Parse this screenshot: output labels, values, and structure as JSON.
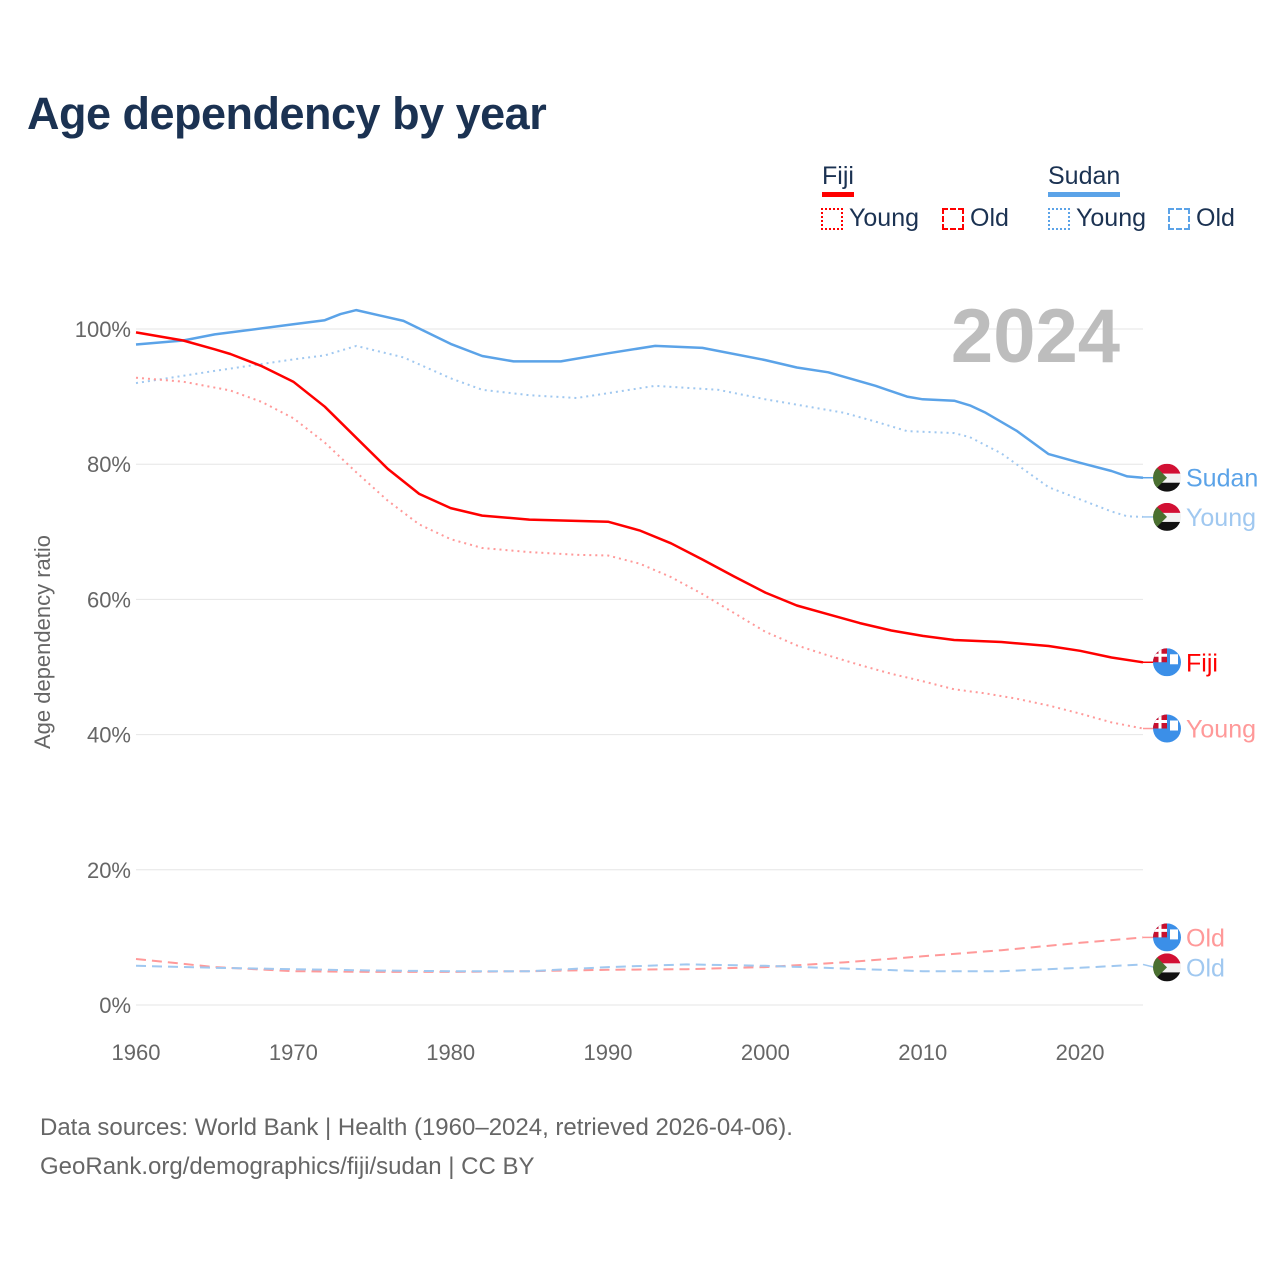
{
  "title": "Age dependency by year",
  "legend": {
    "countries": [
      {
        "name": "Fiji",
        "color": "#ff0000",
        "items": [
          {
            "label": "Young",
            "style": "dotted"
          },
          {
            "label": "Old",
            "style": "dashed"
          }
        ]
      },
      {
        "name": "Sudan",
        "color": "#5ba3e8",
        "items": [
          {
            "label": "Young",
            "style": "dotted"
          },
          {
            "label": "Old",
            "style": "dashed"
          }
        ]
      }
    ]
  },
  "footer": {
    "line1": "Data sources: World Bank | Health (1960–2024, retrieved 2026-04-06).",
    "line2": "GeoRank.org/demographics/fiji/sudan | CC BY"
  },
  "chart_data": {
    "type": "line",
    "title": "Age dependency by year",
    "year_label": "2024",
    "xlabel": "",
    "ylabel": "Age dependency ratio",
    "xlim": [
      1960,
      2024
    ],
    "ylim": [
      0,
      100
    ],
    "x_ticks": [
      "1960",
      "1970",
      "1980",
      "1990",
      "2000",
      "2010",
      "2020"
    ],
    "y_ticks": [
      "0%",
      "20%",
      "40%",
      "60%",
      "80%",
      "100%"
    ],
    "grid": true,
    "series": [
      {
        "name": "Sudan",
        "end_label": "Sudan",
        "country": "sudan",
        "color": "#5ba3e8",
        "dash": "solid",
        "x": [
          1960,
          1963,
          1965,
          1970,
          1972,
          1973,
          1974,
          1977,
          1980,
          1982,
          1984,
          1987,
          1990,
          1993,
          1996,
          2000,
          2002,
          2004,
          2007,
          2009,
          2010,
          2012,
          2013,
          2014,
          2016,
          2018,
          2020,
          2022,
          2023,
          2024
        ],
        "y": [
          97.7,
          98.3,
          99.2,
          100.7,
          101.3,
          102.2,
          102.8,
          101.2,
          97.8,
          96.0,
          95.2,
          95.2,
          96.4,
          97.5,
          97.2,
          95.4,
          94.3,
          93.6,
          91.6,
          90.0,
          89.6,
          89.4,
          88.7,
          87.6,
          84.9,
          81.5,
          80.2,
          79.0,
          78.2,
          78.0
        ]
      },
      {
        "name": "Sudan Young",
        "end_label": "Young",
        "country": "sudan",
        "color": "#a0c8f0",
        "dash": "dotted",
        "x": [
          1960,
          1965,
          1970,
          1972,
          1974,
          1977,
          1980,
          1982,
          1985,
          1988,
          1990,
          1993,
          1997,
          2000,
          2003,
          2005,
          2007,
          2009,
          2012,
          2013,
          2015,
          2018,
          2020,
          2022,
          2023,
          2024
        ],
        "y": [
          92.0,
          93.8,
          95.5,
          96.1,
          97.5,
          95.8,
          92.7,
          91.0,
          90.2,
          89.8,
          90.5,
          91.6,
          91.0,
          89.6,
          88.4,
          87.6,
          86.3,
          84.9,
          84.6,
          84.0,
          81.6,
          76.6,
          74.8,
          73.0,
          72.3,
          72.2
        ]
      },
      {
        "name": "Fiji",
        "end_label": "Fiji",
        "country": "fiji",
        "color": "#ff0000",
        "dash": "solid",
        "x": [
          1960,
          1963,
          1965,
          1966,
          1968,
          1970,
          1972,
          1974,
          1976,
          1978,
          1980,
          1982,
          1985,
          1990,
          1992,
          1994,
          1996,
          1998,
          2000,
          2002,
          2004,
          2006,
          2008,
          2010,
          2012,
          2015,
          2018,
          2020,
          2022,
          2024
        ],
        "y": [
          99.5,
          98.3,
          97.0,
          96.3,
          94.5,
          92.2,
          88.5,
          83.9,
          79.3,
          75.6,
          73.5,
          72.4,
          71.8,
          71.5,
          70.2,
          68.3,
          65.9,
          63.4,
          61.0,
          59.1,
          57.8,
          56.5,
          55.4,
          54.6,
          54.0,
          53.7,
          53.1,
          52.4,
          51.4,
          50.7
        ]
      },
      {
        "name": "Fiji Young",
        "end_label": "Young",
        "country": "fiji",
        "color": "#ff9999",
        "dash": "dotted",
        "x": [
          1960,
          1963,
          1966,
          1968,
          1970,
          1972,
          1974,
          1976,
          1978,
          1980,
          1982,
          1985,
          1988,
          1990,
          1992,
          1994,
          1996,
          1998,
          2000,
          2002,
          2004,
          2006,
          2008,
          2010,
          2012,
          2014,
          2016,
          2018,
          2020,
          2022,
          2024
        ],
        "y": [
          92.8,
          92.2,
          90.9,
          89.2,
          86.8,
          83.2,
          78.8,
          74.6,
          71.1,
          68.9,
          67.6,
          67.0,
          66.6,
          66.5,
          65.3,
          63.3,
          60.8,
          58.0,
          55.2,
          53.2,
          51.7,
          50.3,
          49.0,
          47.9,
          46.7,
          46.1,
          45.3,
          44.3,
          43.1,
          41.8,
          40.9
        ]
      },
      {
        "name": "Fiji Old",
        "end_label": "Old",
        "country": "fiji",
        "color": "#ff9999",
        "dash": "dashed",
        "x": [
          1960,
          1965,
          1970,
          1975,
          1980,
          1985,
          1990,
          1995,
          2000,
          2005,
          2010,
          2015,
          2020,
          2024
        ],
        "y": [
          6.8,
          5.6,
          5.0,
          4.9,
          4.9,
          5.0,
          5.2,
          5.3,
          5.6,
          6.3,
          7.2,
          8.1,
          9.2,
          10.0
        ]
      },
      {
        "name": "Sudan Old",
        "end_label": "Old",
        "country": "sudan",
        "color": "#a0c8f0",
        "dash": "dashed",
        "x": [
          1960,
          1965,
          1970,
          1975,
          1980,
          1985,
          1990,
          1995,
          2000,
          2005,
          2010,
          2015,
          2020,
          2024
        ],
        "y": [
          5.8,
          5.5,
          5.3,
          5.1,
          5.0,
          5.0,
          5.6,
          6.0,
          5.8,
          5.4,
          5.0,
          5.0,
          5.5,
          6.0
        ]
      }
    ]
  }
}
